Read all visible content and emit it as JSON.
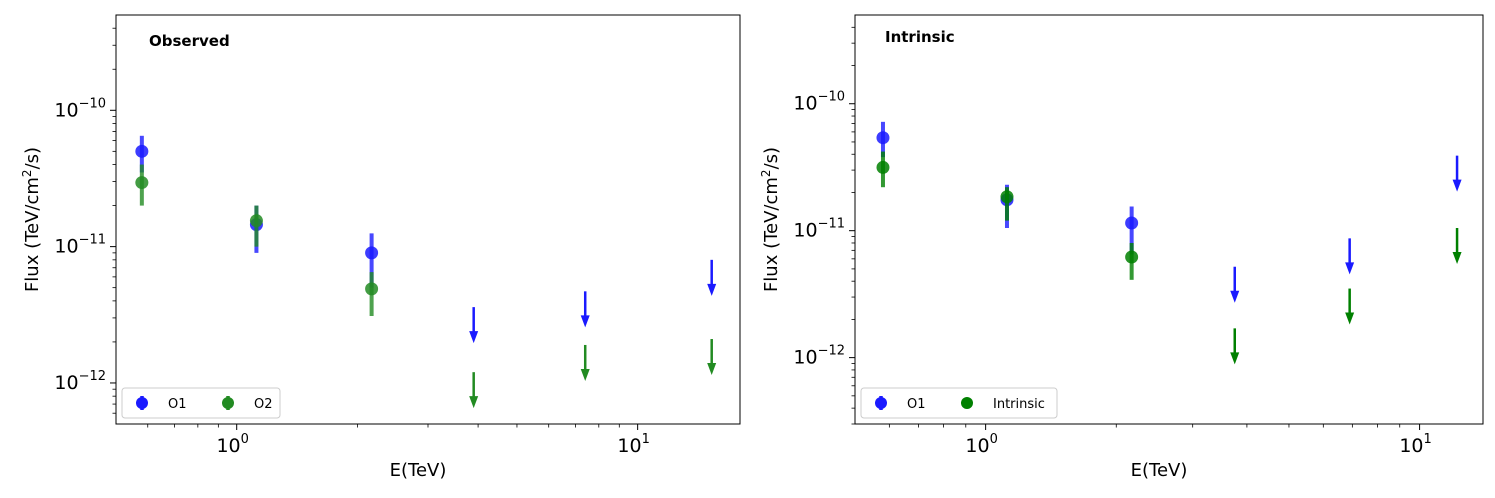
{
  "chart_data": [
    {
      "type": "scatter",
      "title": "Observed",
      "xlabel": "E(TeV)",
      "ylabel": "Flux (TeV/cm²/s)",
      "ylabel_main": "Flux (TeV/cm",
      "ylabel_sup": "2",
      "ylabel_tail": "/s)",
      "x_scale": "log",
      "y_scale": "log",
      "xlim": [
        0.5,
        18
      ],
      "ylim": [
        5e-13,
        5e-10
      ],
      "x_ticks": [
        {
          "value": 1,
          "base": "10",
          "exp": "0"
        },
        {
          "value": 10,
          "base": "10",
          "exp": "1"
        }
      ],
      "y_ticks": [
        {
          "value": 1e-12,
          "base": "10",
          "exp": "−12"
        },
        {
          "value": 1e-11,
          "base": "10",
          "exp": "−11"
        },
        {
          "value": 1e-10,
          "base": "10",
          "exp": "−10"
        }
      ],
      "legend": {
        "placement": "lower left",
        "columns": 2
      },
      "series": [
        {
          "name": "O1",
          "color": "#1a1aff",
          "points": [
            {
              "x": 0.58,
              "y": 5e-11,
              "ylo": 3.5e-11,
              "yhi": 6.5e-11
            },
            {
              "x": 1.12,
              "y": 1.45e-11,
              "ylo": 9e-12,
              "yhi": 2e-11
            },
            {
              "x": 2.17,
              "y": 9e-12,
              "ylo": 5e-12,
              "yhi": 1.25e-11
            }
          ],
          "upper_limits": [
            {
              "x": 3.9,
              "y": 3.6e-12
            },
            {
              "x": 7.4,
              "y": 4.7e-12
            },
            {
              "x": 15.3,
              "y": 8e-12
            }
          ]
        },
        {
          "name": "O2",
          "color": "#228b22",
          "points": [
            {
              "x": 0.58,
              "y": 2.95e-11,
              "ylo": 2e-11,
              "yhi": 4e-11
            },
            {
              "x": 1.12,
              "y": 1.55e-11,
              "ylo": 1e-11,
              "yhi": 2e-11
            },
            {
              "x": 2.17,
              "y": 4.9e-12,
              "ylo": 3.1e-12,
              "yhi": 6.5e-12
            }
          ],
          "upper_limits": [
            {
              "x": 3.9,
              "y": 1.2e-12
            },
            {
              "x": 7.4,
              "y": 1.9e-12
            },
            {
              "x": 15.3,
              "y": 2.1e-12
            }
          ]
        }
      ]
    },
    {
      "type": "scatter",
      "title": "Intrinsic",
      "xlabel": "E(TeV)",
      "ylabel": "Flux (TeV/cm²/s)",
      "ylabel_main": "Flux (TeV/cm",
      "ylabel_sup": "2",
      "ylabel_tail": "/s)",
      "x_scale": "log",
      "y_scale": "log",
      "xlim": [
        0.5,
        14
      ],
      "ylim": [
        3e-13,
        5e-10
      ],
      "x_ticks": [
        {
          "value": 1,
          "base": "10",
          "exp": "0"
        },
        {
          "value": 10,
          "base": "10",
          "exp": "1"
        }
      ],
      "y_ticks": [
        {
          "value": 1e-12,
          "base": "10",
          "exp": "−12"
        },
        {
          "value": 1e-11,
          "base": "10",
          "exp": "−11"
        },
        {
          "value": 1e-10,
          "base": "10",
          "exp": "−10"
        }
      ],
      "legend": {
        "placement": "lower left",
        "columns": 2
      },
      "series": [
        {
          "name": "O1",
          "color": "#1a1aff",
          "points": [
            {
              "x": 0.58,
              "y": 5.4e-11,
              "ylo": 3.8e-11,
              "yhi": 7.2e-11
            },
            {
              "x": 1.12,
              "y": 1.75e-11,
              "ylo": 1.05e-11,
              "yhi": 2.3e-11
            },
            {
              "x": 2.17,
              "y": 1.15e-11,
              "ylo": 6.5e-12,
              "yhi": 1.55e-11
            }
          ],
          "upper_limits": [
            {
              "x": 3.75,
              "y": 5.2e-12
            },
            {
              "x": 6.9,
              "y": 8.7e-12
            },
            {
              "x": 12.2,
              "y": 3.9e-11
            }
          ]
        },
        {
          "name": "Intrinsic",
          "color": "#008000",
          "points": [
            {
              "x": 0.58,
              "y": 3.15e-11,
              "ylo": 2.2e-11,
              "yhi": 4.2e-11
            },
            {
              "x": 1.12,
              "y": 1.85e-11,
              "ylo": 1.2e-11,
              "yhi": 2.2e-11
            },
            {
              "x": 2.17,
              "y": 6.2e-12,
              "ylo": 4.1e-12,
              "yhi": 8e-12
            }
          ],
          "upper_limits": [
            {
              "x": 3.75,
              "y": 1.7e-12
            },
            {
              "x": 6.9,
              "y": 3.5e-12
            },
            {
              "x": 12.2,
              "y": 1.05e-11
            }
          ]
        }
      ]
    }
  ]
}
